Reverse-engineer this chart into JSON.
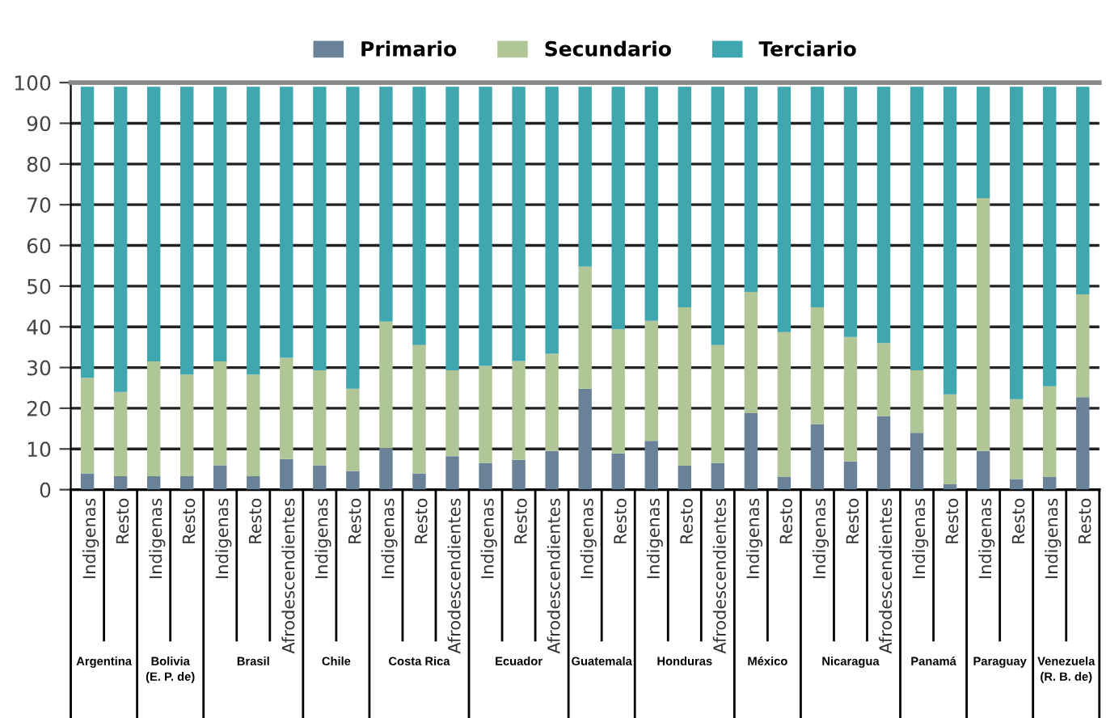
{
  "chart_data": {
    "type": "bar",
    "stacked": true,
    "categories": [
      "Indigenas",
      "Resto",
      "Indigenas",
      "Resto",
      "Indigenas",
      "Resto",
      "Afrodescendientes",
      "Indigenas",
      "Resto",
      "Indigenas",
      "Resto",
      "Afrodescendientes",
      "Indigenas",
      "Resto",
      "Afrodescendientes",
      "Indigenas",
      "Resto",
      "Indigenas",
      "Resto",
      "Afrodescendientes",
      "Indigenas",
      "Resto",
      "Indigenas",
      "Resto",
      "Afrodescendientes",
      "Indigenas",
      "Resto",
      "Indigenas",
      "Resto",
      "Indigenas",
      "Resto"
    ],
    "series": [
      {
        "name": "Primario",
        "color": "#6a8298",
        "values": [
          4,
          3.3,
          3.3,
          3.3,
          6,
          3.3,
          7.5,
          6,
          4.6,
          10.2,
          4,
          8.2,
          6.6,
          7.3,
          9.5,
          24.8,
          8.9,
          12,
          5.9,
          6.6,
          18.8,
          3.2,
          16.1,
          6.9,
          18.1,
          14,
          1.3,
          9.5,
          2.6,
          3.2,
          22.7
        ]
      },
      {
        "name": "Secundario",
        "color": "#b0c697",
        "values": [
          23.5,
          20.7,
          28.2,
          25,
          25.5,
          25,
          24.9,
          23.3,
          20.2,
          31.1,
          31.5,
          21.1,
          23.8,
          24.3,
          23.9,
          30,
          30.5,
          29.5,
          38.9,
          28.9,
          29.8,
          35.5,
          28.7,
          30.6,
          17.9,
          15.3,
          22.1,
          62.1,
          19.6,
          22.2,
          25.3
        ]
      },
      {
        "name": "Terciario",
        "color": "#40a6b0",
        "values": [
          71.5,
          75,
          67.5,
          70.7,
          67.5,
          70.7,
          66.6,
          69.7,
          74.2,
          57.7,
          63.5,
          69.7,
          68.6,
          67.4,
          65.6,
          44.2,
          59.6,
          57.5,
          54.2,
          63.5,
          50.4,
          60.3,
          54.2,
          61.5,
          63,
          69.7,
          75.6,
          27.4,
          76.8,
          73.6,
          51
        ]
      }
    ],
    "ylim": [
      0,
      100
    ],
    "yticks": [
      0,
      10,
      20,
      30,
      40,
      50,
      60,
      70,
      80,
      90,
      100
    ],
    "grid": "y",
    "legend": "top",
    "annotations": [
      "Argentina",
      "Bolivia\n(E. P. de)",
      "Brasil",
      "Chile",
      "Costa Rica",
      "Ecuador",
      "Guatemala",
      "Honduras",
      "México",
      "Nicaragua",
      "Panamá",
      "Paraguay",
      "Venezuela\n(R. B. de)"
    ]
  }
}
